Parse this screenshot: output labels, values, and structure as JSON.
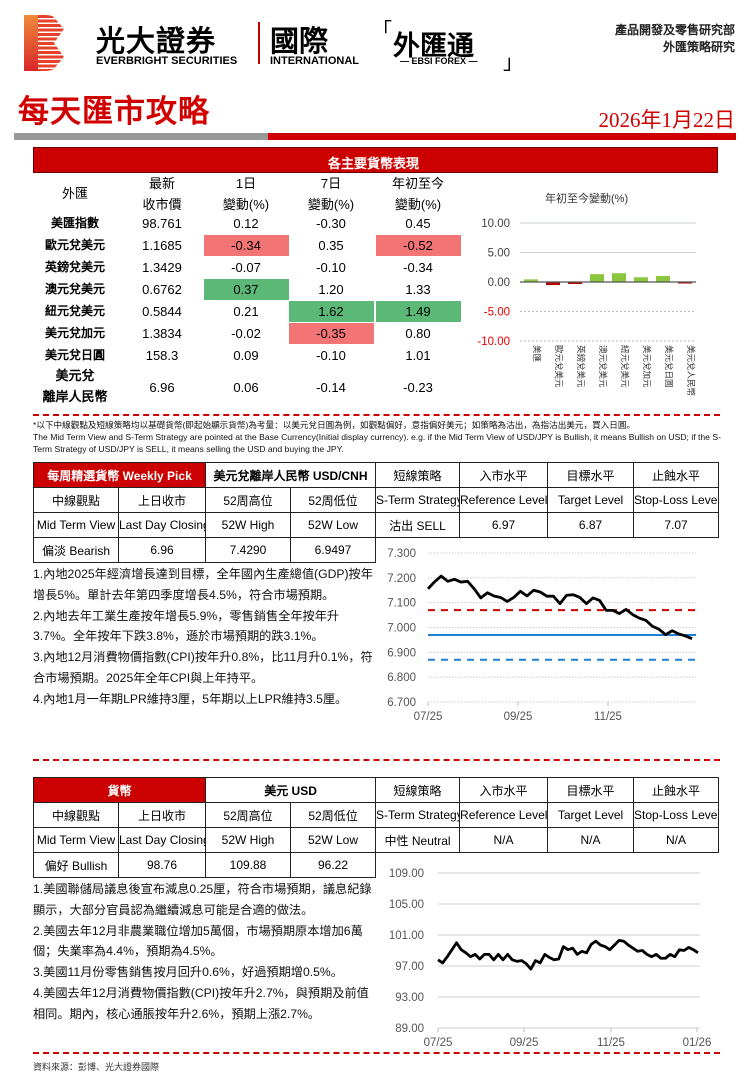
{
  "header": {
    "brand_zh": "光大證券",
    "brand_en": "EVERBRIGHT SECURITIES",
    "intl_zh": "國際",
    "intl_en": "INTERNATIONAL",
    "fx_zh": "外匯通",
    "fx_en": "— EBSI FOREX —",
    "bracket_open": "「",
    "bracket_close": "」",
    "dept_line1": "產品開發及零售研究部",
    "dept_line2": "外匯策略研究",
    "title": "每天匯市攻略",
    "date": "2026年1月22日"
  },
  "colors": {
    "brand_red": "#cc0000",
    "negative_highlight": "#f27474",
    "positive_highlight": "#5cb877",
    "bar_positive": "#8cc63f",
    "bar_negative": "#b00000",
    "ref_line": "#1f7fd0",
    "stop_loss_line": "#d00000"
  },
  "performance": {
    "title": "各主要貨幣表現",
    "headers": {
      "pair": "外匯",
      "close": [
        "最新",
        "收市價"
      ],
      "d1": [
        "1日",
        "變動(%)"
      ],
      "d7": [
        "7日",
        "變動(%)"
      ],
      "ytd": [
        "年初至今",
        "變動(%)"
      ]
    },
    "rows": [
      {
        "pair": "美匯指數",
        "close": "98.761",
        "d1": "0.12",
        "d7": "-0.30",
        "ytd": "0.45"
      },
      {
        "pair": "歐元兌美元",
        "close": "1.1685",
        "d1": "-0.34",
        "d7": "0.35",
        "ytd": "-0.52",
        "hl": {
          "d1": "neg",
          "ytd": "neg"
        }
      },
      {
        "pair": "英鎊兌美元",
        "close": "1.3429",
        "d1": "-0.07",
        "d7": "-0.10",
        "ytd": "-0.34"
      },
      {
        "pair": "澳元兌美元",
        "close": "0.6762",
        "d1": "0.37",
        "d7": "1.20",
        "ytd": "1.33",
        "hl": {
          "d1": "pos"
        }
      },
      {
        "pair": "紐元兌美元",
        "close": "0.5844",
        "d1": "0.21",
        "d7": "1.62",
        "ytd": "1.49",
        "hl": {
          "d7": "pos",
          "ytd": "pos"
        }
      },
      {
        "pair": "美元兌加元",
        "close": "1.3834",
        "d1": "-0.02",
        "d7": "-0.35",
        "ytd": "0.80",
        "hl": {
          "d7": "neg"
        }
      },
      {
        "pair": "美元兌日圓",
        "close": "158.3",
        "d1": "0.09",
        "d7": "-0.10",
        "ytd": "1.01"
      },
      {
        "pair": "美元兌離岸人民幣",
        "pair_line1": "美元兌",
        "pair_line2": "離岸人民幣",
        "close": "6.96",
        "d1": "0.06",
        "d7": "-0.14",
        "ytd": "-0.23"
      }
    ]
  },
  "chart_data": [
    {
      "type": "bar",
      "title": "年初至今變動(%)",
      "categories": [
        "美匯",
        "歐元兌美元",
        "英鎊兌美元",
        "澳元兌美元",
        "紐元兌美元",
        "美元兌加元",
        "美元兌日圓",
        "美元兌人民幣"
      ],
      "values": [
        0.45,
        -0.52,
        -0.34,
        1.33,
        1.49,
        0.8,
        1.01,
        -0.23
      ],
      "ylim": [
        -10,
        10
      ],
      "yticks": [
        "10.00",
        "5.00",
        "0.00",
        "-5.00",
        "-10.00"
      ],
      "grid": true
    },
    {
      "type": "line",
      "title": "",
      "ylim": [
        6.7,
        7.3
      ],
      "yticks": [
        "7.300",
        "7.200",
        "7.100",
        "7.000",
        "6.900",
        "6.800",
        "6.700"
      ],
      "xticks": [
        "07/25",
        "09/25",
        "11/25"
      ],
      "series": [
        {
          "values": [
            7.156,
            7.184,
            7.207,
            7.186,
            7.194,
            7.183,
            7.186,
            7.156,
            7.119,
            7.14,
            7.127,
            7.121,
            7.105,
            7.121,
            7.146,
            7.127,
            7.15,
            7.143,
            7.126,
            7.126,
            7.096,
            7.13,
            7.132,
            7.121,
            7.096,
            7.119,
            7.109,
            7.069,
            7.069,
            7.056,
            7.073,
            7.052,
            7.038,
            7.029,
            7.005,
            6.993,
            6.971,
            6.987,
            6.974,
            6.966,
            6.955
          ]
        }
      ],
      "hlines": [
        {
          "value": 7.07,
          "style": "dashed",
          "color": "#d00000"
        },
        {
          "value": 6.97,
          "style": "solid",
          "color": "#1f7fd0"
        },
        {
          "value": 6.87,
          "style": "dashed",
          "color": "#1f7fd0"
        }
      ],
      "grid": true
    },
    {
      "type": "line",
      "title": "",
      "ylim": [
        89,
        109
      ],
      "yticks": [
        "109.00",
        "105.00",
        "101.00",
        "97.00",
        "93.00",
        "89.00"
      ],
      "xticks": [
        "07/25",
        "09/25",
        "11/25",
        "01/26"
      ],
      "series": [
        {
          "values": [
            97.8,
            97.4,
            98.2,
            99.1,
            100.0,
            99.1,
            98.7,
            98.2,
            98.5,
            97.9,
            98.5,
            98.5,
            97.8,
            98.5,
            97.8,
            98.5,
            97.8,
            97.6,
            97.7,
            97.3,
            96.6,
            97.7,
            97.4,
            98.5,
            98.1,
            97.8,
            97.9,
            99.5,
            99.1,
            99.3,
            98.5,
            98.9,
            98.7,
            99.8,
            100.2,
            99.7,
            99.5,
            99.1,
            99.7,
            100.3,
            100.2,
            99.7,
            99.3,
            98.9,
            99.0,
            98.5,
            98.2,
            98.5,
            98.0,
            98.0,
            98.5,
            98.2,
            99.1,
            99.0,
            99.4,
            99.1,
            98.7
          ]
        }
      ],
      "grid": true
    }
  ],
  "note": {
    "zh": "*以下中線觀點及短線策略均以基礎貨幣(即起始顯示貨幣)為考量：以美元兌日圓為例，如觀點偏好，意指偏好美元；如策略為沽出，為指沽出美元，買入日圓。",
    "en": "The Mid Term View and S-Term Strategy are pointed at the Base Currency(Initial display currency). e.g. if the Mid Term View of USD/JPY is Bullish, it means Bullish on USD; if the S-Term Strategy of USD/JPY is SELL, it means selling the USD and buying the JPY."
  },
  "labels": {
    "mid_zh": "中線觀點",
    "close_zh": "上日收市",
    "high_zh": "52周高位",
    "low_zh": "52周低位",
    "strat_zh": "短線策略",
    "entry_zh": "入市水平",
    "target_zh": "目標水平",
    "stop_zh": "止蝕水平",
    "strat_en": "S-Term Strategy",
    "entry_en": "Reference Level",
    "target_en": "Target Level",
    "stop_en": "Stop-Loss Level",
    "mid_en": "Mid Term View",
    "close_en": "Last Day Closing",
    "high_en": "52W High",
    "low_en": "52W Low"
  },
  "pick": {
    "head": "每周精選貨幣 Weekly Pick",
    "pair": "美元兌離岸人民幣 USD/CNH",
    "strategy": "沽出 SELL",
    "entry": "6.97",
    "target": "6.87",
    "stop": "7.07",
    "view": "偏淡 Bearish",
    "close": "6.96",
    "high": "7.4290",
    "low": "6.9497",
    "points": [
      "1.內地2025年經濟增長達到目標，全年國內生產總值(GDP)按年增長5%。單計去年第四季度增長4.5%，符合市場預期。",
      "2.內地去年工業生產按年增長5.9%，零售銷售全年按年升3.7%。全年按年下跌3.8%，遜於市場預期的跌3.1%。",
      "3.內地12月消費物價指數(CPI)按年升0.8%，比11月升0.1%，符合市場預期。2025年全年CPI與上年持平。",
      "4.內地1月一年期LPR維持3厘，5年期以上LPR維持3.5厘。"
    ]
  },
  "usd": {
    "head": "貨幣",
    "pair": "美元 USD",
    "strategy": "中性 Neutral",
    "entry": "N/A",
    "target": "N/A",
    "stop": "N/A",
    "view": "偏好 Bullish",
    "close": "98.76",
    "high": "109.88",
    "low": "96.22",
    "points": [
      "1.美國聯儲局議息後宣布減息0.25厘，符合市場預期，議息紀錄顯示，大部分官員認為繼續減息可能是合適的做法。",
      "2.美國去年12月非農業職位增加5萬個，市場預期原本增加6萬個；失業率為4.4%，預期為4.5%。",
      "3.美國11月份零售銷售按月回升0.6%，好過預期增0.5%。",
      "4.美國去年12月消費物價指數(CPI)按年升2.7%，與預期及前值相同。期內，核心通脹按年升2.6%，預期上漲2.7%。"
    ]
  },
  "footer": {
    "source": "資料來源：彭博、光大證券國際"
  }
}
